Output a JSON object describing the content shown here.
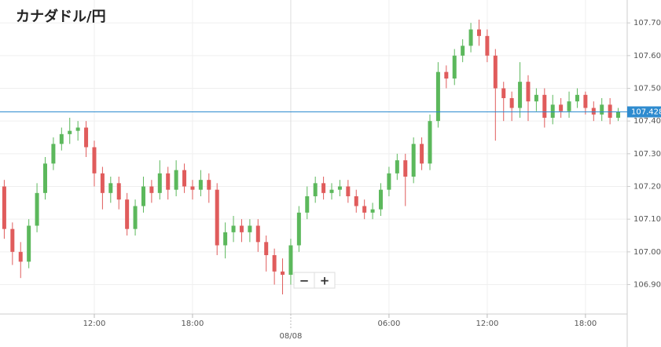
{
  "chart_data": {
    "type": "candlestick",
    "title": "カナダドル/円",
    "x": [
      6.5,
      7,
      7.5,
      8,
      8.5,
      9,
      9.5,
      10,
      10.5,
      11,
      11.5,
      12,
      12.5,
      13,
      13.5,
      14,
      14.5,
      15,
      15.5,
      16,
      16.5,
      17,
      17.5,
      18,
      18.5,
      19,
      19.5,
      20,
      20.5,
      21,
      21.5,
      22,
      22.5,
      23,
      23.5,
      24,
      24.5,
      25,
      25.5,
      26,
      26.5,
      27,
      27.5,
      28,
      28.5,
      29,
      29.5,
      30,
      30.5,
      31,
      31.5,
      32,
      32.5,
      33,
      33.5,
      34,
      34.5,
      35,
      35.5,
      36,
      36.5,
      37,
      37.5,
      38,
      38.5,
      39,
      39.5,
      40,
      40.5,
      41,
      41.5,
      42,
      42.5,
      43,
      43.5,
      44
    ],
    "open": [
      107.2,
      107.07,
      107.0,
      106.97,
      107.08,
      107.18,
      107.27,
      107.33,
      107.36,
      107.37,
      107.38,
      107.32,
      107.24,
      107.18,
      107.21,
      107.16,
      107.07,
      107.14,
      107.2,
      107.18,
      107.24,
      107.19,
      107.25,
      107.2,
      107.19,
      107.22,
      107.19,
      107.02,
      107.06,
      107.08,
      107.06,
      107.08,
      107.03,
      106.99,
      106.94,
      106.93,
      107.02,
      107.12,
      107.17,
      107.21,
      107.18,
      107.19,
      107.2,
      107.17,
      107.14,
      107.12,
      107.13,
      107.19,
      107.24,
      107.28,
      107.23,
      107.33,
      107.27,
      107.4,
      107.55,
      107.53,
      107.6,
      107.63,
      107.68,
      107.66,
      107.6,
      107.5,
      107.47,
      107.44,
      107.52,
      107.46,
      107.48,
      107.41,
      107.45,
      107.43,
      107.46,
      107.48,
      107.44,
      107.42,
      107.45,
      107.41
    ],
    "high": [
      107.22,
      107.09,
      107.03,
      107.1,
      107.21,
      107.29,
      107.35,
      107.38,
      107.41,
      107.4,
      107.4,
      107.34,
      107.26,
      107.23,
      107.23,
      107.18,
      107.16,
      107.23,
      107.22,
      107.28,
      107.26,
      107.28,
      107.27,
      107.22,
      107.25,
      107.24,
      107.21,
      107.09,
      107.11,
      107.1,
      107.1,
      107.1,
      107.05,
      107.01,
      106.98,
      107.04,
      107.14,
      107.2,
      107.23,
      107.23,
      107.21,
      107.22,
      107.22,
      107.19,
      107.16,
      107.15,
      107.21,
      107.26,
      107.3,
      107.3,
      107.35,
      107.35,
      107.42,
      107.58,
      107.57,
      107.62,
      107.65,
      107.7,
      107.71,
      107.68,
      107.62,
      107.52,
      107.49,
      107.58,
      107.54,
      107.5,
      107.5,
      107.48,
      107.47,
      107.49,
      107.5,
      107.49,
      107.46,
      107.47,
      107.47,
      107.44
    ],
    "low": [
      107.04,
      106.96,
      106.92,
      106.95,
      107.06,
      107.16,
      107.25,
      107.31,
      107.33,
      107.34,
      107.29,
      107.2,
      107.13,
      107.15,
      107.13,
      107.05,
      107.05,
      107.12,
      107.15,
      107.16,
      107.16,
      107.17,
      107.18,
      107.16,
      107.17,
      107.15,
      106.99,
      106.98,
      107.03,
      107.03,
      107.03,
      107.0,
      106.94,
      106.9,
      106.87,
      106.9,
      107.0,
      107.1,
      107.15,
      107.16,
      107.16,
      107.17,
      107.15,
      107.12,
      107.1,
      107.1,
      107.11,
      107.17,
      107.22,
      107.14,
      107.21,
      107.25,
      107.25,
      107.38,
      107.5,
      107.51,
      107.58,
      107.61,
      107.63,
      107.58,
      107.34,
      107.4,
      107.4,
      107.41,
      107.4,
      107.43,
      107.38,
      107.39,
      107.41,
      107.41,
      107.44,
      107.42,
      107.4,
      107.4,
      107.39,
      107.4
    ],
    "close": [
      107.07,
      107.0,
      106.97,
      107.08,
      107.18,
      107.27,
      107.33,
      107.36,
      107.37,
      107.38,
      107.32,
      107.24,
      107.18,
      107.21,
      107.16,
      107.07,
      107.14,
      107.2,
      107.18,
      107.24,
      107.19,
      107.25,
      107.2,
      107.19,
      107.22,
      107.19,
      107.02,
      107.06,
      107.08,
      107.06,
      107.08,
      107.03,
      106.99,
      106.94,
      106.93,
      107.02,
      107.12,
      107.17,
      107.21,
      107.18,
      107.19,
      107.2,
      107.17,
      107.14,
      107.12,
      107.13,
      107.19,
      107.24,
      107.28,
      107.23,
      107.33,
      107.27,
      107.4,
      107.55,
      107.53,
      107.6,
      107.63,
      107.68,
      107.66,
      107.6,
      107.5,
      107.47,
      107.44,
      107.52,
      107.46,
      107.48,
      107.41,
      107.45,
      107.43,
      107.46,
      107.48,
      107.44,
      107.42,
      107.45,
      107.41,
      107.428
    ],
    "up_color": "#5cb85c",
    "down_color": "#e05c5c",
    "current_price": 107.428,
    "current_price_color": "#2e8bcf",
    "xlim": [
      6.24,
      44.55
    ],
    "xticks": [
      {
        "value": 12,
        "label": "12:00"
      },
      {
        "value": 18,
        "label": "18:00"
      },
      {
        "value": 24,
        "label": "08/08"
      },
      {
        "value": 30,
        "label": "06:00"
      },
      {
        "value": 36,
        "label": "12:00"
      },
      {
        "value": 42,
        "label": "18:00"
      }
    ],
    "ylim": [
      106.81,
      107.77
    ],
    "yticks": [
      {
        "value": 106.9,
        "label": "106.900"
      },
      {
        "value": 107.0,
        "label": "107.000"
      },
      {
        "value": 107.1,
        "label": "107.100"
      },
      {
        "value": 107.2,
        "label": "107.200"
      },
      {
        "value": 107.3,
        "label": "107.300"
      },
      {
        "value": 107.4,
        "label": "107.400"
      },
      {
        "value": 107.5,
        "label": "107.500"
      },
      {
        "value": 107.6,
        "label": "107.600"
      },
      {
        "value": 107.7,
        "label": "107.700"
      }
    ],
    "grid": true
  },
  "controls": {
    "zoom_out": "−",
    "zoom_in": "+"
  }
}
